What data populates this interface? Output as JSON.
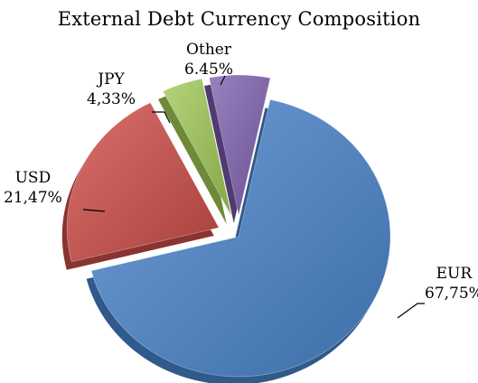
{
  "chart_data": {
    "type": "pie",
    "title": "External Debt Currency Composition",
    "exploded": true,
    "slices": [
      {
        "name": "EUR",
        "label": "67,75%",
        "value": 67.75,
        "color": "#4F81BD"
      },
      {
        "name": "USD",
        "label": "21,47%",
        "value": 21.47,
        "color": "#C0504D"
      },
      {
        "name": "JPY",
        "label": "4,33%",
        "value": 4.33,
        "color": "#9BBB59"
      },
      {
        "name": "Other",
        "label": "6.45%",
        "value": 6.45,
        "color": "#8064A2"
      }
    ]
  }
}
